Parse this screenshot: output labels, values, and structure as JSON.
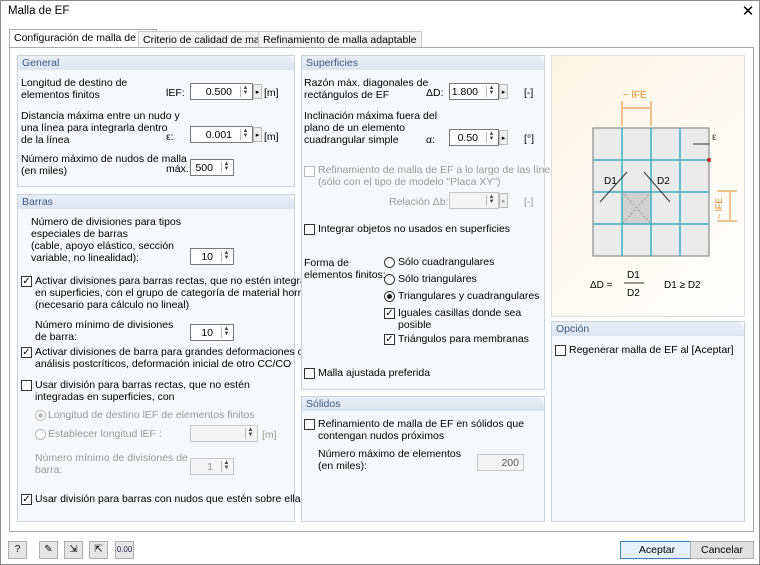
{
  "window": {
    "title": "Malla de EF",
    "close_icon": "close-icon"
  },
  "tabs": [
    "Configuración de malla de EF",
    "Criterio de calidad de malla",
    "Refinamiento de malla adaptable"
  ],
  "general": {
    "title": "General",
    "target_length": {
      "label1": "Longitud de destino de",
      "label2": "elementos finitos",
      "symbol": "lEF:",
      "value": "0.500",
      "unit": "[m]"
    },
    "max_distance": {
      "label1": "Distancia máxima entre un nudo y",
      "label2": "una línea para integrarla dentro",
      "label3": "de la línea",
      "symbol": "ε:",
      "value": "0.001",
      "unit": "[m]"
    },
    "max_nodes": {
      "label1": "Número máximo de nudos de malla",
      "label2": "(en miles)",
      "symbol": "máx.:",
      "value": "500"
    }
  },
  "barras": {
    "title": "Barras",
    "special_div": {
      "label1": "Número de divisiones para tipos",
      "label2": "especiales de barras",
      "label3": "(cable, apoyo elástico, sección",
      "label4": "variable, no linealidad):",
      "value": "10"
    },
    "activate_concrete": {
      "checked": true,
      "l1": "Activar divisiones para barras rectas, que no estén integradas",
      "l2": "en superficies, con el grupo de categoría de material hormigón",
      "l3": "(necesario para cálculo no lineal)"
    },
    "min_div": {
      "label1": "Número mínimo de divisiones",
      "label2": "de barra:",
      "value": "10"
    },
    "activate_large": {
      "checked": true,
      "l1": "Activar divisiones de barra para grandes deformaciones o",
      "l2": "análisis postcríticos, deformación inicial de otro CC/CO"
    },
    "use_div": {
      "checked": false,
      "l1": "Usar división para barras rectas, que no estén",
      "l2": "integradas en superficies, con"
    },
    "radio_target": {
      "label": "Longitud de destino lEF de elementos finitos",
      "selected": true
    },
    "radio_set": {
      "label": "Establecer longitud lEF :",
      "value": "",
      "unit": "[m]"
    },
    "min_div2": {
      "label1": "Número mínimo de divisiones de",
      "label2": "barra:",
      "value": "1"
    },
    "use_nodes": {
      "checked": true,
      "label": "Usar división para barras con nudos que estén sobre ellas"
    }
  },
  "superficies": {
    "title": "Superficies",
    "ratio": {
      "label1": "Razón máx. diagonales de",
      "label2": "rectángulos de EF",
      "symbol": "ΔD:",
      "value": "1.800",
      "unit": "[-]"
    },
    "incl": {
      "label1": "Inclinación máxima fuera del",
      "label2": "plano de un elemento",
      "label3": "cuadrangular simple",
      "symbol": "α:",
      "value": "0.50",
      "unit": "[°]"
    },
    "refine": {
      "checked": false,
      "l1": "Refinamiento de malla de EF a lo largo de las líneas",
      "l2": "(sólo con el tipo de modelo \"Placa XY\")",
      "rel_label": "Relación Δb:",
      "value": "",
      "unit": "[-]"
    },
    "integrate": {
      "checked": false,
      "label": "Integrar objetos no usados en superficies"
    },
    "shape": {
      "label1": "Forma de",
      "label2": "elementos finitos:",
      "options": [
        "Sólo cuadrangulares",
        "Sólo triangulares",
        "Triangulares y cuadrangulares"
      ],
      "selected": 2
    },
    "equal": {
      "checked": true,
      "l1": "Iguales casillas donde sea",
      "l2": "posible"
    },
    "membranes": {
      "checked": true,
      "label": "Triángulos para membranas"
    },
    "adjusted": {
      "checked": false,
      "label": "Malla ajustada preferida"
    }
  },
  "solidos": {
    "title": "Sólidos",
    "refine": {
      "checked": false,
      "l1": "Refinamiento de malla de EF en sólidos que",
      "l2": "contengan nudos próximos"
    },
    "max_el": {
      "label1": "Número  máximo de elementos",
      "label2": "(en miles):",
      "value": "200"
    }
  },
  "diagram": {
    "lfe": "~ lFE",
    "eps": "ε",
    "d1": "D1",
    "d2": "D2",
    "formula_lhs": "ΔD =",
    "num": "D1",
    "den": "D2",
    "cond": "D1 ≥ D2",
    "grid_color": "#3ab0c0",
    "accent_color": "#e08a2a"
  },
  "opcion": {
    "title": "Opción",
    "regen": {
      "checked": false,
      "label": "Regenerar malla de EF al [Aceptar]"
    }
  },
  "footer": {
    "icons": [
      "help-icon",
      "edit-icon",
      "import-icon",
      "export-icon",
      "units-icon"
    ],
    "ok": "Aceptar",
    "cancel": "Cancelar"
  }
}
